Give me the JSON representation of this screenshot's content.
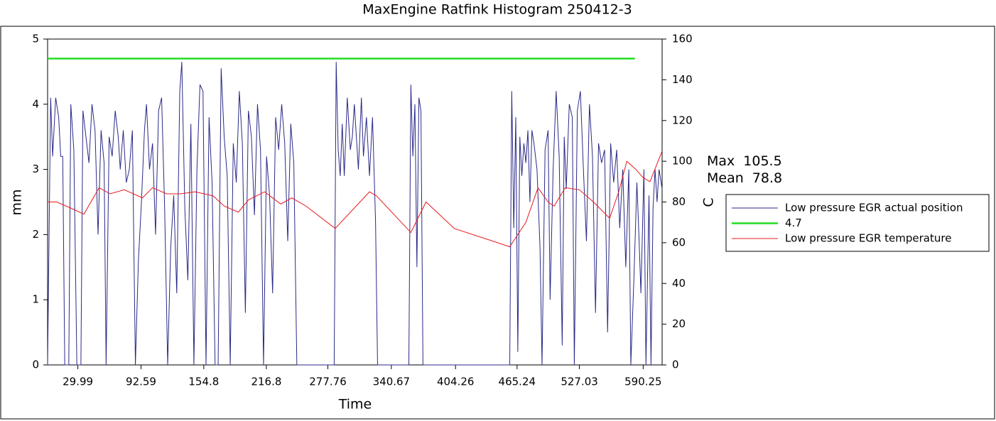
{
  "chart_data": {
    "type": "line",
    "title": "MaxEngine Ratfink  Histogram 250412-3",
    "xlabel": "Time",
    "ylabel": "mm",
    "y2label": "C",
    "xlim": [
      0,
      609
    ],
    "xticks": [
      29.99,
      92.59,
      154.8,
      216.8,
      277.76,
      340.67,
      404.26,
      465.24,
      527.03,
      590.25
    ],
    "ylim": [
      0,
      5
    ],
    "yticks": [
      0,
      1,
      2,
      3,
      4,
      5
    ],
    "y2lim": [
      0,
      160
    ],
    "y2ticks": [
      0,
      20,
      40,
      60,
      80,
      100,
      120,
      140,
      160
    ],
    "stats": [
      {
        "label": "Max",
        "value": 105.5
      },
      {
        "label": "Mean",
        "value": 78.8
      }
    ],
    "series": [
      {
        "name": "Low pressure EGR actual position",
        "color": "#2a2a88",
        "x": [
          0,
          3,
          5,
          8,
          11,
          13,
          15,
          17,
          21,
          23,
          26,
          29,
          33,
          35,
          38,
          41,
          44,
          47,
          50,
          53,
          56,
          58,
          61,
          64,
          67,
          70,
          72,
          75,
          78,
          81,
          84,
          87,
          90,
          93,
          96,
          98,
          101,
          104,
          107,
          110,
          113,
          116,
          119,
          122,
          125,
          128,
          131,
          133,
          136,
          139,
          142,
          145,
          148,
          151,
          154,
          157,
          160,
          163,
          166,
          169,
          172,
          175,
          178,
          181,
          184,
          187,
          190,
          193,
          196,
          199,
          202,
          205,
          208,
          211,
          214,
          217,
          220,
          223,
          226,
          229,
          232,
          235,
          238,
          241,
          244,
          247,
          250,
          284,
          286,
          288,
          290,
          292,
          294,
          297,
          300,
          302,
          304,
          306,
          308,
          311,
          313,
          316,
          319,
          322,
          325,
          327,
          358,
          360,
          362,
          364,
          366,
          368,
          370,
          372,
          458,
          460,
          462,
          464,
          466,
          468,
          470,
          472,
          474,
          476,
          478,
          480,
          482,
          485,
          488,
          490,
          493,
          496,
          498,
          501,
          504,
          507,
          510,
          512,
          514,
          517,
          520,
          522,
          525,
          528,
          531,
          534,
          537,
          540,
          543,
          546,
          549,
          552,
          555,
          558,
          561,
          564,
          567,
          570,
          573,
          576,
          578,
          581,
          584,
          586,
          588,
          591,
          593,
          596,
          598,
          600,
          602,
          604,
          606,
          609
        ],
        "values": [
          0,
          4.1,
          3.2,
          4.1,
          3.8,
          3.2,
          3.2,
          0,
          0,
          4.0,
          3.3,
          0,
          0,
          3.9,
          3.5,
          3.1,
          4.0,
          3.6,
          2.0,
          3.6,
          3.1,
          0,
          3.5,
          3.2,
          3.9,
          3.5,
          3.0,
          3.6,
          2.8,
          3.0,
          3.6,
          0,
          1.6,
          2.5,
          3.6,
          4.0,
          3.0,
          3.4,
          2.0,
          3.9,
          4.1,
          2.4,
          0,
          1.8,
          2.6,
          1.1,
          4.2,
          4.65,
          2.4,
          1.3,
          3.7,
          0,
          3.0,
          4.3,
          4.2,
          0,
          3.8,
          2.8,
          0,
          0,
          4.55,
          3.5,
          2.9,
          0,
          3.4,
          2.8,
          4.2,
          3.4,
          0.8,
          3.9,
          3.5,
          2.3,
          4.0,
          3.3,
          0,
          3.2,
          2.6,
          1.1,
          3.8,
          3.3,
          4.0,
          3.4,
          1.9,
          3.7,
          3.1,
          0,
          0,
          0,
          4.65,
          3.3,
          2.9,
          3.7,
          2.9,
          4.1,
          3.3,
          3.5,
          4.0,
          3.5,
          3.0,
          4.1,
          3.2,
          3.8,
          2.9,
          3.8,
          2.2,
          0,
          0,
          4.3,
          3.2,
          4.0,
          1.5,
          4.1,
          3.9,
          0,
          0,
          4.2,
          2.1,
          3.8,
          0.2,
          3.5,
          2.9,
          3.4,
          3.1,
          3.6,
          2.5,
          3.6,
          3.4,
          3.0,
          1.8,
          0,
          3.3,
          3.6,
          1.0,
          3.0,
          4.2,
          3.2,
          0.3,
          3.5,
          2.7,
          4.0,
          3.8,
          0,
          3.9,
          4.2,
          3.0,
          1.9,
          4.0,
          3.2,
          0.8,
          3.4,
          3.1,
          3.3,
          0.5,
          3.4,
          2.8,
          3.3,
          2.1,
          3.0,
          1.5,
          3.0,
          0,
          1.3,
          2.8,
          2.0,
          1.1,
          3.0,
          0,
          2.6,
          0,
          2.4,
          3.0,
          2.5,
          3.0,
          2.7
        ]
      },
      {
        "name": "4.7",
        "color": "#22dd22",
        "x": [
          0,
          582
        ],
        "values": [
          4.7,
          4.7
        ]
      },
      {
        "name": "Low pressure EGR temperature",
        "color": "#e8191c",
        "axis": "y2",
        "x": [
          0,
          9,
          23,
          36,
          51,
          62,
          76,
          94,
          104,
          118,
          132,
          146,
          164,
          175,
          189,
          199,
          215,
          231,
          242,
          256,
          285,
          319,
          326,
          360,
          375,
          403,
          446,
          458,
          474,
          486,
          496,
          502,
          513,
          527,
          541,
          557,
          566,
          574,
          583,
          590,
          597,
          609
        ],
        "values": [
          80,
          80,
          77,
          74,
          87,
          84,
          86,
          82,
          87,
          84,
          84,
          85,
          83,
          78,
          75,
          81,
          85,
          79,
          82,
          78,
          67,
          85,
          83,
          65,
          80,
          67,
          60,
          58,
          70,
          87,
          80,
          78,
          87,
          86,
          80,
          72,
          85,
          100,
          96,
          92,
          90,
          105
        ]
      }
    ]
  }
}
